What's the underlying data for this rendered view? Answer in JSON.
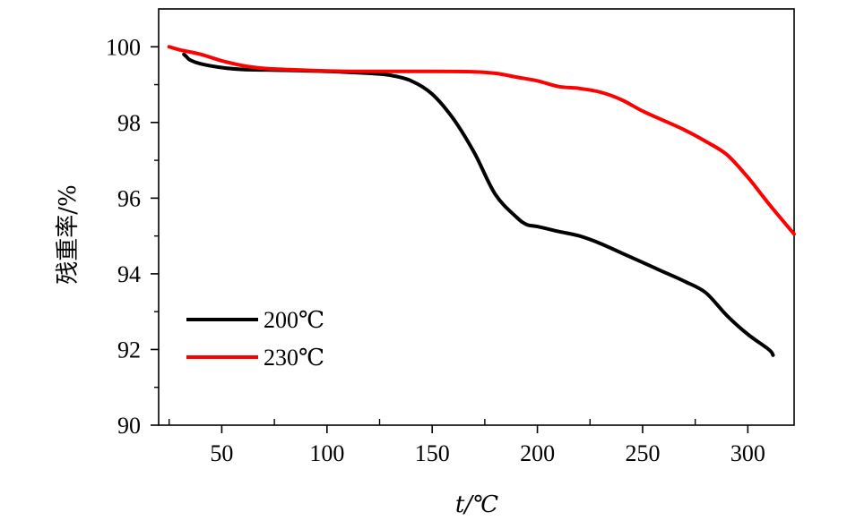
{
  "chart_data": {
    "type": "line",
    "xlabel": "t/℃",
    "ylabel": "残重率/%",
    "xlim": [
      20,
      322
    ],
    "ylim": [
      90,
      101
    ],
    "xticks": [
      50,
      100,
      150,
      200,
      250,
      300
    ],
    "yticks": [
      90,
      92,
      94,
      96,
      98,
      100
    ],
    "grid": false,
    "legend_position": "bottom-left",
    "series": [
      {
        "name": "200℃",
        "color": "#000000",
        "x": [
          32,
          33,
          35,
          40,
          50,
          60,
          80,
          100,
          120,
          130,
          140,
          150,
          160,
          170,
          180,
          190,
          195,
          200,
          210,
          220,
          230,
          240,
          250,
          260,
          270,
          280,
          290,
          300,
          310,
          312
        ],
        "y": [
          99.8,
          99.75,
          99.65,
          99.55,
          99.45,
          99.4,
          99.38,
          99.35,
          99.3,
          99.25,
          99.1,
          98.75,
          98.1,
          97.2,
          96.1,
          95.5,
          95.3,
          95.25,
          95.12,
          95.0,
          94.8,
          94.55,
          94.3,
          94.05,
          93.8,
          93.5,
          92.9,
          92.4,
          92.0,
          91.85
        ]
      },
      {
        "name": "230℃",
        "color": "#ff0000",
        "x": [
          25,
          30,
          40,
          50,
          60,
          70,
          80,
          100,
          120,
          150,
          170,
          180,
          190,
          200,
          210,
          220,
          230,
          240,
          250,
          260,
          270,
          280,
          290,
          300,
          310,
          322
        ],
        "y": [
          100.0,
          99.92,
          99.8,
          99.63,
          99.5,
          99.43,
          99.4,
          99.36,
          99.35,
          99.35,
          99.34,
          99.3,
          99.2,
          99.1,
          98.95,
          98.9,
          98.8,
          98.6,
          98.3,
          98.05,
          97.8,
          97.5,
          97.15,
          96.55,
          95.85,
          95.05
        ]
      }
    ]
  }
}
